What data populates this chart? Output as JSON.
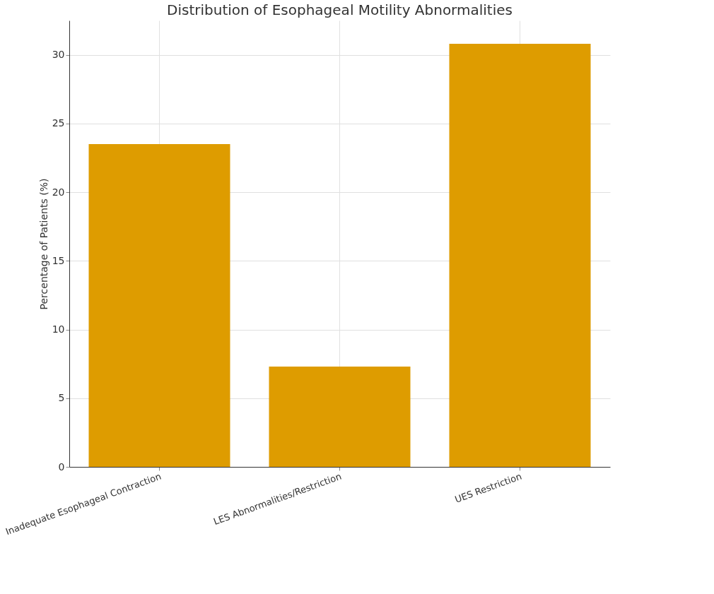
{
  "chart_data": {
    "type": "bar",
    "title": "Distribution of Esophageal Motility Abnormalities",
    "ylabel": "Percentage of Patients (%)",
    "categories": [
      "Inadequate Esophageal Contraction",
      "LES Abnormalities/Restriction",
      "UES Restriction"
    ],
    "values": [
      23.5,
      7.3,
      30.8
    ],
    "color": "#de9c00",
    "ylim": [
      0,
      32.5
    ],
    "yticks": [
      0,
      5,
      10,
      15,
      20,
      25,
      30
    ],
    "grid": true
  }
}
